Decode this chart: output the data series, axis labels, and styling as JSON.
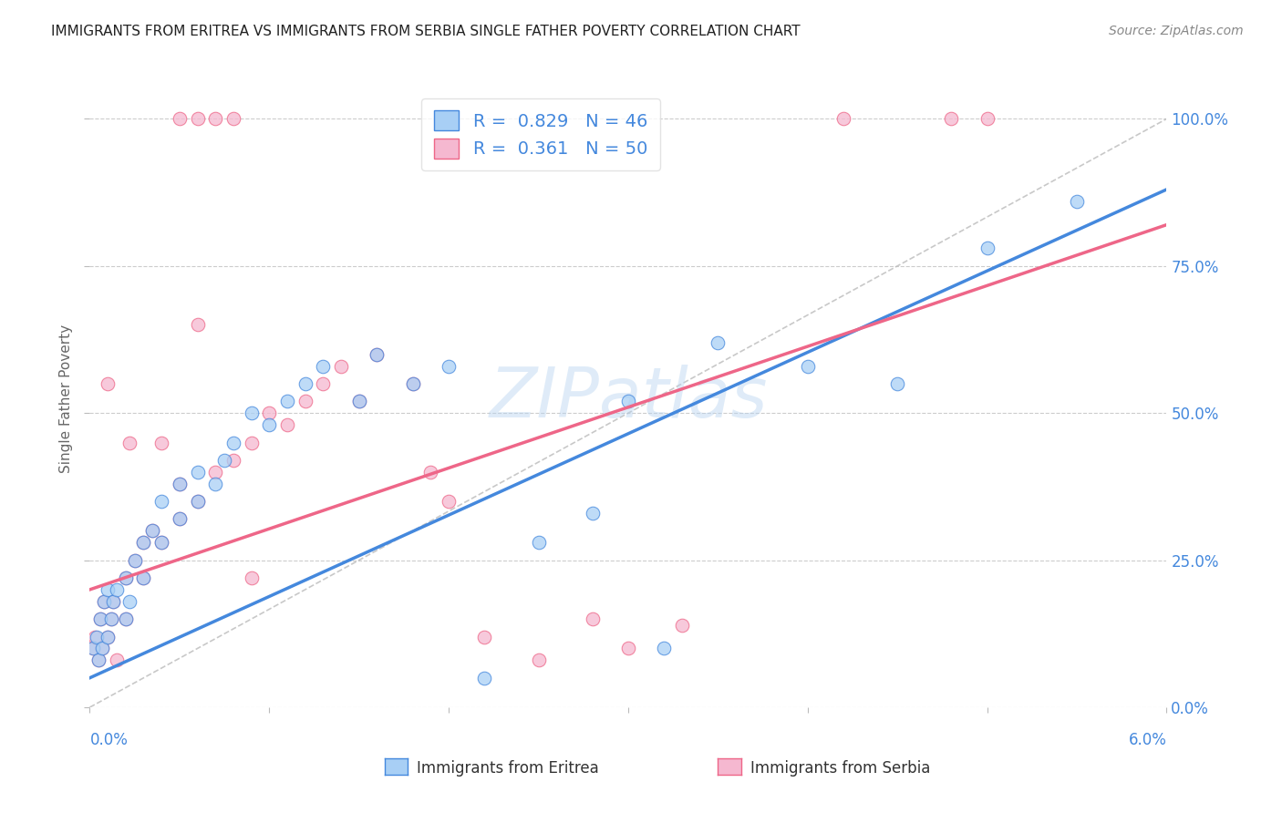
{
  "title": "IMMIGRANTS FROM ERITREA VS IMMIGRANTS FROM SERBIA SINGLE FATHER POVERTY CORRELATION CHART",
  "source": "Source: ZipAtlas.com",
  "ylabel": "Single Father Poverty",
  "legend_eritrea": "Immigrants from Eritrea",
  "legend_serbia": "Immigrants from Serbia",
  "R_eritrea": 0.829,
  "N_eritrea": 46,
  "R_serbia": 0.361,
  "N_serbia": 50,
  "color_eritrea": "#a8cff5",
  "color_serbia": "#f5b8d0",
  "color_line_eritrea": "#4488dd",
  "color_line_serbia": "#ee6688",
  "color_diag": "#bbbbbb",
  "color_text_blue": "#4488dd",
  "background": "#ffffff",
  "grid_color": "#cccccc",
  "xlim": [
    0.0,
    0.06
  ],
  "ylim": [
    0.0,
    1.05
  ],
  "xticks": [
    0.0,
    0.01,
    0.02,
    0.03,
    0.04,
    0.05,
    0.06
  ],
  "yticks": [
    0.0,
    0.25,
    0.5,
    0.75,
    1.0
  ],
  "scatter_eritrea_x": [
    0.0002,
    0.0004,
    0.0005,
    0.0006,
    0.0007,
    0.0008,
    0.001,
    0.001,
    0.0012,
    0.0013,
    0.0015,
    0.002,
    0.002,
    0.0022,
    0.0025,
    0.003,
    0.003,
    0.0035,
    0.004,
    0.004,
    0.005,
    0.005,
    0.006,
    0.006,
    0.007,
    0.0075,
    0.008,
    0.009,
    0.01,
    0.011,
    0.012,
    0.013,
    0.015,
    0.016,
    0.018,
    0.02,
    0.022,
    0.025,
    0.028,
    0.03,
    0.032,
    0.035,
    0.04,
    0.045,
    0.05,
    0.055
  ],
  "scatter_eritrea_y": [
    0.1,
    0.12,
    0.08,
    0.15,
    0.1,
    0.18,
    0.12,
    0.2,
    0.15,
    0.18,
    0.2,
    0.15,
    0.22,
    0.18,
    0.25,
    0.22,
    0.28,
    0.3,
    0.28,
    0.35,
    0.32,
    0.38,
    0.35,
    0.4,
    0.38,
    0.42,
    0.45,
    0.5,
    0.48,
    0.52,
    0.55,
    0.58,
    0.52,
    0.6,
    0.55,
    0.58,
    0.05,
    0.28,
    0.33,
    0.52,
    0.1,
    0.62,
    0.58,
    0.55,
    0.78,
    0.86
  ],
  "scatter_serbia_x": [
    0.0002,
    0.0003,
    0.0005,
    0.0006,
    0.0007,
    0.0008,
    0.001,
    0.001,
    0.0012,
    0.0013,
    0.0015,
    0.002,
    0.002,
    0.0022,
    0.0025,
    0.003,
    0.003,
    0.0035,
    0.004,
    0.004,
    0.005,
    0.005,
    0.006,
    0.006,
    0.007,
    0.008,
    0.009,
    0.01,
    0.011,
    0.012,
    0.013,
    0.014,
    0.015,
    0.016,
    0.018,
    0.019,
    0.02,
    0.022,
    0.025,
    0.028,
    0.03,
    0.033,
    0.042,
    0.048,
    0.05,
    0.005,
    0.006,
    0.007,
    0.008,
    0.009
  ],
  "scatter_serbia_y": [
    0.1,
    0.12,
    0.08,
    0.15,
    0.1,
    0.18,
    0.12,
    0.55,
    0.15,
    0.18,
    0.08,
    0.15,
    0.22,
    0.45,
    0.25,
    0.22,
    0.28,
    0.3,
    0.28,
    0.45,
    0.32,
    0.38,
    0.35,
    0.65,
    0.4,
    0.42,
    0.45,
    0.5,
    0.48,
    0.52,
    0.55,
    0.58,
    0.52,
    0.6,
    0.55,
    0.4,
    0.35,
    0.12,
    0.08,
    0.15,
    0.1,
    0.14,
    1.0,
    1.0,
    1.0,
    1.0,
    1.0,
    1.0,
    1.0,
    0.22
  ],
  "trend_eritrea_x0": 0.0,
  "trend_eritrea_y0": 0.05,
  "trend_eritrea_x1": 0.06,
  "trend_eritrea_y1": 0.88,
  "trend_serbia_x0": 0.0,
  "trend_serbia_y0": 0.2,
  "trend_serbia_x1": 0.06,
  "trend_serbia_y1": 0.82
}
